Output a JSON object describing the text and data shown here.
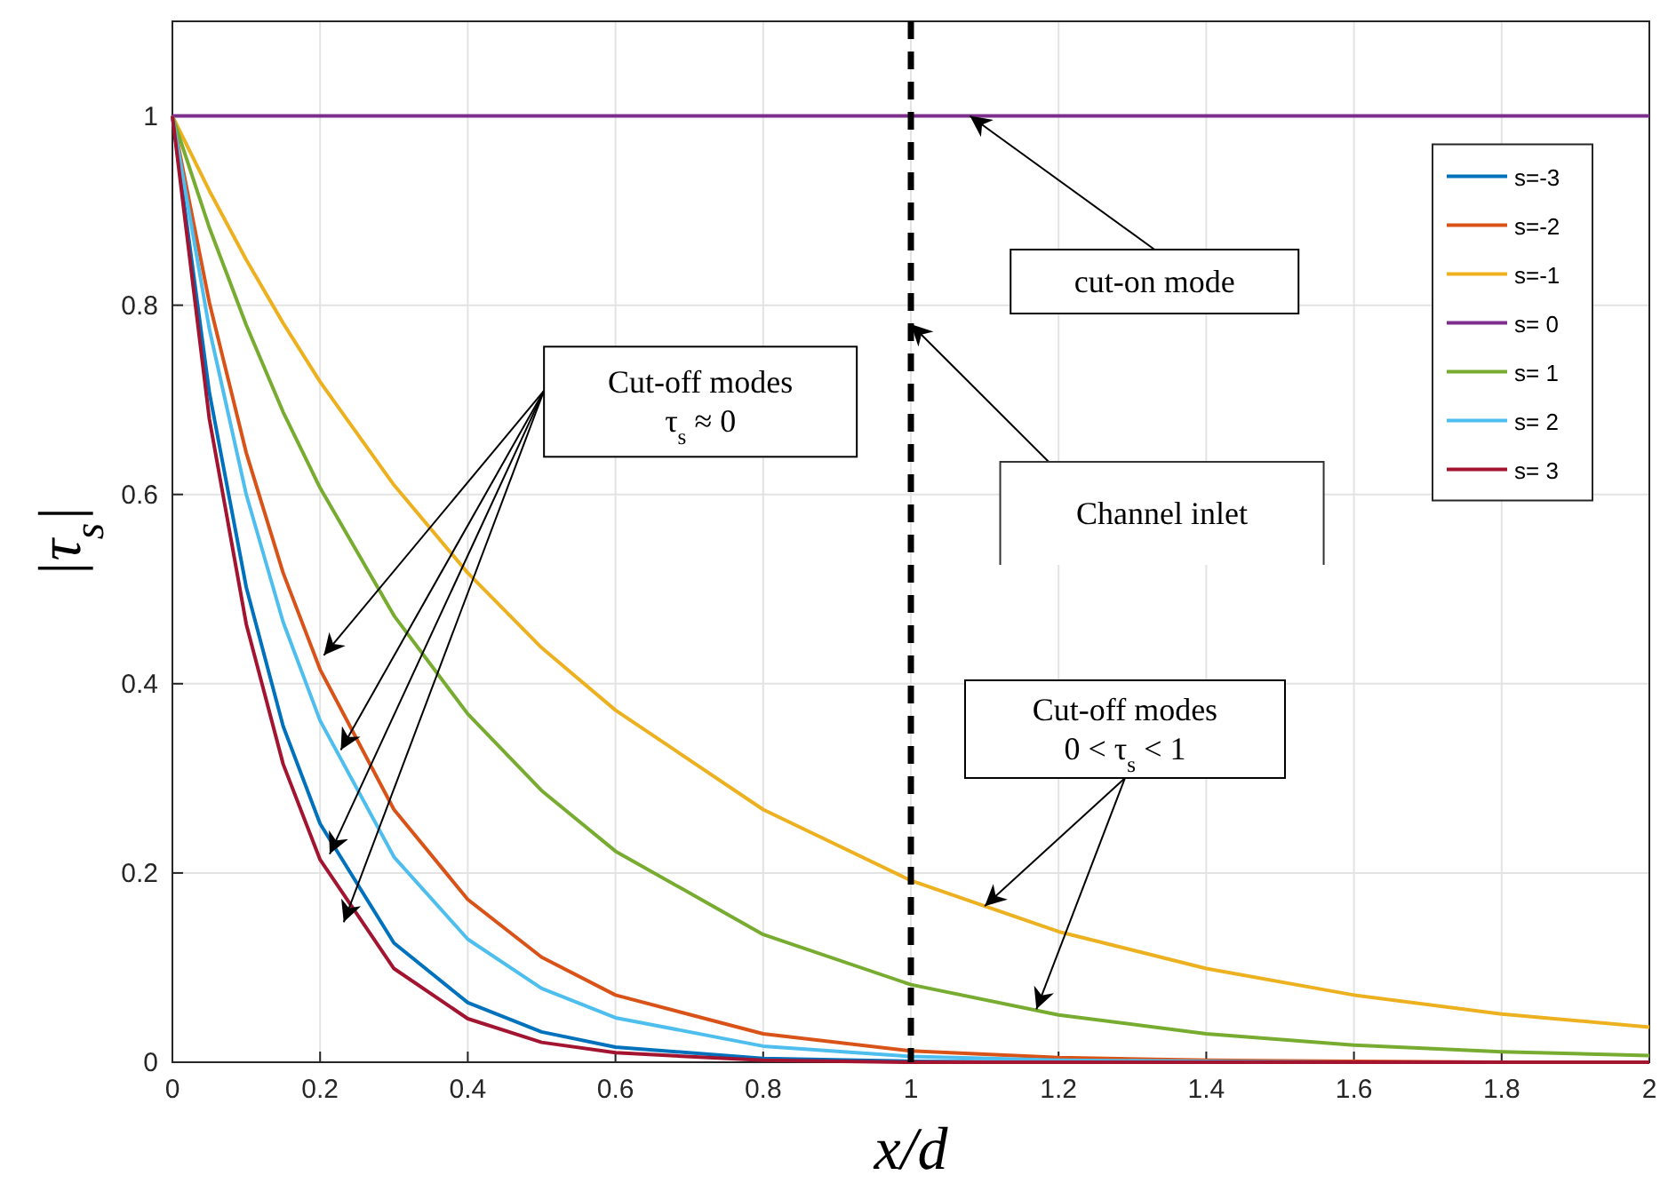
{
  "chart_data": {
    "type": "line",
    "xlabel": "x/d",
    "ylabel": "|τ$_{s}$|",
    "x": [
      0,
      0.05,
      0.1,
      0.15,
      0.2,
      0.3,
      0.4,
      0.5,
      0.6,
      0.8,
      1.0,
      1.2,
      1.4,
      1.6,
      1.8,
      2.0
    ],
    "series": [
      {
        "name": "s=-3",
        "color": "#0072bd",
        "values": [
          1,
          0.708,
          0.502,
          0.355,
          0.252,
          0.126,
          0.063,
          0.032,
          0.016,
          0.004,
          0.001,
          0,
          0,
          0,
          null,
          null
        ]
      },
      {
        "name": "s=-2",
        "color": "#d95319",
        "values": [
          1,
          0.803,
          0.644,
          0.517,
          0.415,
          0.267,
          0.172,
          0.111,
          0.071,
          0.03,
          0.012,
          0.005,
          0.002,
          0.001,
          0,
          0
        ]
      },
      {
        "name": "s=-1",
        "color": "#edb120",
        "values": [
          1,
          0.921,
          0.848,
          0.781,
          0.719,
          0.61,
          0.517,
          0.438,
          0.372,
          0.267,
          0.192,
          0.138,
          0.099,
          0.071,
          0.051,
          0.037
        ]
      },
      {
        "name": "s= 0",
        "color": "#7e2f8e",
        "values": [
          1,
          1,
          1,
          1,
          1,
          1,
          1,
          1,
          1,
          1,
          1,
          1,
          1,
          1,
          1,
          1
        ]
      },
      {
        "name": "s= 1",
        "color": "#77ac30",
        "values": [
          1,
          0.882,
          0.779,
          0.687,
          0.607,
          0.472,
          0.368,
          0.287,
          0.223,
          0.135,
          0.082,
          0.05,
          0.03,
          0.018,
          0.011,
          0.007
        ]
      },
      {
        "name": "s= 2",
        "color": "#4dbeee",
        "values": [
          1,
          0.775,
          0.6,
          0.465,
          0.361,
          0.217,
          0.13,
          0.078,
          0.047,
          0.017,
          0.006,
          0.002,
          0.001,
          0,
          null,
          null
        ]
      },
      {
        "name": "s= 3",
        "color": "#a2142f",
        "values": [
          1,
          0.68,
          0.463,
          0.315,
          0.214,
          0.099,
          0.046,
          0.021,
          0.01,
          0.002,
          0,
          0,
          0,
          0,
          0,
          0
        ]
      }
    ],
    "xlim": [
      0,
      2
    ],
    "ylim": [
      0,
      1.1
    ],
    "xticks": [
      0,
      0.2,
      0.4,
      0.6,
      0.8,
      1,
      1.2,
      1.4,
      1.6,
      1.8,
      2
    ],
    "yticks": [
      0,
      0.2,
      0.4,
      0.6,
      0.8,
      1
    ],
    "grid": true,
    "legend": "top right",
    "line_style": "solid",
    "ref_lines": [
      {
        "axis": "x",
        "value": 1,
        "color": "#000000",
        "line_style": "dashed"
      }
    ],
    "annotations": [
      {
        "text": "cut-on mode",
        "x": 1.08,
        "y": 1
      },
      "Cut-off modes\nτ$_{s}$ ≈ 0",
      "Channel inlet",
      {
        "text": "Cut-off modes\n0 < τ$_{s}$ < 1",
        "x": 1.1,
        "y": 0.165
      }
    ]
  }
}
